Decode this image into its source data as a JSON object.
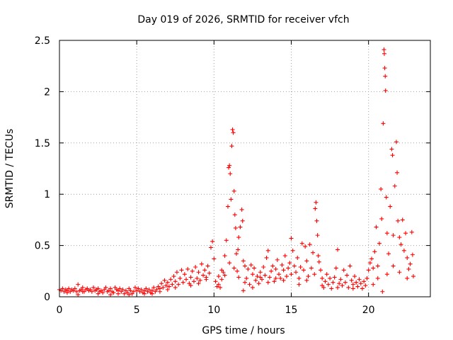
{
  "chart_data": {
    "type": "scatter",
    "title": "Day 019 of 2026, SRMTID for receiver vfch",
    "xlabel": "GPS time / hours",
    "ylabel": "SRMTID / TECUs",
    "xlim": [
      0,
      24
    ],
    "ylim": [
      0,
      2.5
    ],
    "xticks": [
      0,
      5,
      10,
      15,
      20
    ],
    "xtick_labels": [
      "0",
      "5",
      "10",
      "15",
      "20"
    ],
    "yticks": [
      0,
      0.5,
      1,
      1.5,
      2,
      2.5
    ],
    "ytick_labels": [
      "0",
      "0.5",
      "1",
      "1.5",
      "2",
      "2.5"
    ],
    "grid": true,
    "marker": "+",
    "series": [
      {
        "name": "SRMTID",
        "color": "#ff0000",
        "points": [
          [
            0.0,
            0.07
          ],
          [
            0.1,
            0.06
          ],
          [
            0.2,
            0.08
          ],
          [
            0.3,
            0.05
          ],
          [
            0.4,
            0.07
          ],
          [
            0.5,
            0.06
          ],
          [
            0.6,
            0.08
          ],
          [
            0.7,
            0.05
          ],
          [
            0.8,
            0.07
          ],
          [
            0.9,
            0.06
          ],
          [
            1.0,
            0.08
          ],
          [
            1.1,
            0.05
          ],
          [
            1.2,
            0.12
          ],
          [
            1.3,
            0.06
          ],
          [
            1.4,
            0.07
          ],
          [
            1.5,
            0.09
          ],
          [
            1.6,
            0.05
          ],
          [
            1.7,
            0.07
          ],
          [
            1.8,
            0.08
          ],
          [
            1.9,
            0.06
          ],
          [
            2.0,
            0.07
          ],
          [
            2.1,
            0.05
          ],
          [
            2.2,
            0.09
          ],
          [
            2.3,
            0.06
          ],
          [
            2.4,
            0.07
          ],
          [
            2.5,
            0.08
          ],
          [
            2.6,
            0.05
          ],
          [
            2.7,
            0.06
          ],
          [
            2.8,
            0.04
          ],
          [
            2.9,
            0.07
          ],
          [
            3.0,
            0.09
          ],
          [
            3.1,
            0.05
          ],
          [
            3.2,
            0.06
          ],
          [
            3.3,
            0.08
          ],
          [
            3.4,
            0.05
          ],
          [
            3.5,
            0.04
          ],
          [
            3.6,
            0.09
          ],
          [
            3.7,
            0.07
          ],
          [
            3.8,
            0.06
          ],
          [
            3.9,
            0.08
          ],
          [
            4.0,
            0.05
          ],
          [
            4.1,
            0.07
          ],
          [
            4.2,
            0.03
          ],
          [
            4.3,
            0.06
          ],
          [
            4.4,
            0.04
          ],
          [
            4.5,
            0.08
          ],
          [
            4.6,
            0.06
          ],
          [
            4.7,
            0.03
          ],
          [
            4.8,
            0.05
          ],
          [
            4.9,
            0.09
          ],
          [
            5.0,
            0.06
          ],
          [
            5.1,
            0.08
          ],
          [
            5.2,
            0.05
          ],
          [
            5.3,
            0.07
          ],
          [
            5.4,
            0.04
          ],
          [
            5.5,
            0.06
          ],
          [
            5.6,
            0.08
          ],
          [
            5.7,
            0.05
          ],
          [
            5.8,
            0.07
          ],
          [
            5.9,
            0.04
          ],
          [
            6.0,
            0.06
          ],
          [
            6.1,
            0.09
          ],
          [
            6.2,
            0.05
          ],
          [
            6.3,
            0.07
          ],
          [
            6.4,
            0.1
          ],
          [
            6.5,
            0.08
          ],
          [
            6.6,
            0.13
          ],
          [
            6.7,
            0.09
          ],
          [
            6.8,
            0.16
          ],
          [
            6.9,
            0.11
          ],
          [
            7.0,
            0.14
          ],
          [
            7.1,
            0.1
          ],
          [
            7.2,
            0.17
          ],
          [
            7.3,
            0.12
          ],
          [
            7.4,
            0.2
          ],
          [
            7.5,
            0.15
          ],
          [
            7.6,
            0.24
          ],
          [
            7.7,
            0.12
          ],
          [
            7.8,
            0.18
          ],
          [
            7.9,
            0.26
          ],
          [
            8.0,
            0.14
          ],
          [
            8.1,
            0.22
          ],
          [
            8.2,
            0.17
          ],
          [
            8.3,
            0.27
          ],
          [
            8.4,
            0.13
          ],
          [
            8.5,
            0.19
          ],
          [
            8.6,
            0.25
          ],
          [
            8.7,
            0.15
          ],
          [
            8.8,
            0.29
          ],
          [
            8.9,
            0.18
          ],
          [
            9.0,
            0.24
          ],
          [
            9.1,
            0.16
          ],
          [
            9.2,
            0.32
          ],
          [
            9.3,
            0.21
          ],
          [
            9.4,
            0.26
          ],
          [
            9.5,
            0.19
          ],
          [
            9.6,
            0.3
          ],
          [
            9.7,
            0.23
          ],
          [
            9.8,
            0.48
          ],
          [
            9.9,
            0.54
          ],
          [
            10.0,
            0.37
          ],
          [
            10.1,
            0.15
          ],
          [
            10.2,
            0.1
          ],
          [
            10.3,
            0.2
          ],
          [
            10.4,
            0.09
          ],
          [
            10.5,
            0.17
          ],
          [
            10.6,
            0.24
          ],
          [
            10.7,
            0.4
          ],
          [
            10.8,
            0.55
          ],
          [
            10.9,
            0.88
          ],
          [
            10.95,
            1.26
          ],
          [
            11.0,
            1.28
          ],
          [
            11.05,
            1.2
          ],
          [
            11.1,
            0.95
          ],
          [
            11.15,
            1.47
          ],
          [
            11.2,
            1.63
          ],
          [
            11.25,
            1.6
          ],
          [
            11.3,
            1.03
          ],
          [
            11.35,
            0.8
          ],
          [
            11.4,
            0.67
          ],
          [
            11.45,
            0.42
          ],
          [
            11.5,
            0.25
          ],
          [
            11.55,
            0.46
          ],
          [
            11.6,
            0.58
          ],
          [
            11.7,
            0.68
          ],
          [
            11.8,
            0.85
          ],
          [
            11.85,
            0.74
          ],
          [
            11.9,
            0.35
          ],
          [
            12.0,
            0.3
          ],
          [
            12.1,
            0.18
          ],
          [
            12.2,
            0.27
          ],
          [
            12.3,
            0.12
          ],
          [
            12.4,
            0.31
          ],
          [
            12.5,
            0.22
          ],
          [
            12.6,
            0.28
          ],
          [
            12.7,
            0.16
          ],
          [
            12.8,
            0.2
          ],
          [
            12.9,
            0.13
          ],
          [
            13.0,
            0.24
          ],
          [
            13.1,
            0.17
          ],
          [
            13.2,
            0.29
          ],
          [
            13.3,
            0.21
          ],
          [
            13.4,
            0.38
          ],
          [
            13.5,
            0.45
          ],
          [
            13.6,
            0.19
          ],
          [
            13.7,
            0.25
          ],
          [
            13.8,
            0.3
          ],
          [
            13.9,
            0.15
          ],
          [
            14.0,
            0.27
          ],
          [
            14.1,
            0.36
          ],
          [
            14.2,
            0.22
          ],
          [
            14.3,
            0.18
          ],
          [
            14.4,
            0.31
          ],
          [
            14.5,
            0.26
          ],
          [
            14.6,
            0.4
          ],
          [
            14.7,
            0.2
          ],
          [
            14.8,
            0.28
          ],
          [
            14.9,
            0.33
          ],
          [
            15.0,
            0.57
          ],
          [
            15.1,
            0.45
          ],
          [
            15.2,
            0.3
          ],
          [
            15.3,
            0.24
          ],
          [
            15.4,
            0.38
          ],
          [
            15.5,
            0.18
          ],
          [
            15.6,
            0.29
          ],
          [
            15.7,
            0.52
          ],
          [
            15.8,
            0.26
          ],
          [
            15.9,
            0.49
          ],
          [
            16.0,
            0.35
          ],
          [
            16.1,
            0.2
          ],
          [
            16.2,
            0.51
          ],
          [
            16.3,
            0.28
          ],
          [
            16.4,
            0.43
          ],
          [
            16.5,
            0.22
          ],
          [
            16.55,
            0.86
          ],
          [
            16.6,
            0.92
          ],
          [
            16.65,
            0.74
          ],
          [
            16.7,
            0.6
          ],
          [
            16.75,
            0.4
          ],
          [
            16.8,
            0.34
          ],
          [
            16.9,
            0.26
          ],
          [
            17.0,
            0.18
          ],
          [
            17.1,
            0.09
          ],
          [
            17.2,
            0.15
          ],
          [
            17.3,
            0.22
          ],
          [
            17.4,
            0.12
          ],
          [
            17.5,
            0.18
          ],
          [
            17.6,
            0.08
          ],
          [
            17.7,
            0.14
          ],
          [
            17.8,
            0.19
          ],
          [
            17.9,
            0.28
          ],
          [
            18.0,
            0.46
          ],
          [
            18.1,
            0.13
          ],
          [
            18.2,
            0.17
          ],
          [
            18.3,
            0.11
          ],
          [
            18.4,
            0.26
          ],
          [
            18.5,
            0.14
          ],
          [
            18.6,
            0.21
          ],
          [
            18.7,
            0.09
          ],
          [
            18.8,
            0.3
          ],
          [
            18.9,
            0.16
          ],
          [
            19.0,
            0.12
          ],
          [
            19.1,
            0.2
          ],
          [
            19.2,
            0.14
          ],
          [
            19.3,
            0.1
          ],
          [
            19.4,
            0.17
          ],
          [
            19.5,
            0.13
          ],
          [
            19.6,
            0.08
          ],
          [
            19.7,
            0.15
          ],
          [
            19.8,
            0.11
          ],
          [
            19.9,
            0.18
          ],
          [
            20.0,
            0.26
          ],
          [
            20.1,
            0.33
          ],
          [
            20.2,
            0.37
          ],
          [
            20.3,
            0.28
          ],
          [
            20.4,
            0.44
          ],
          [
            20.5,
            0.68
          ],
          [
            20.6,
            0.3
          ],
          [
            20.7,
            0.52
          ],
          [
            20.8,
            1.05
          ],
          [
            20.85,
            0.76
          ],
          [
            20.9,
            0.05
          ],
          [
            20.95,
            1.69
          ],
          [
            21.0,
            2.41
          ],
          [
            21.02,
            2.37
          ],
          [
            21.05,
            2.23
          ],
          [
            21.08,
            2.15
          ],
          [
            21.1,
            2.01
          ],
          [
            21.15,
            0.97
          ],
          [
            21.2,
            0.62
          ],
          [
            21.3,
            0.42
          ],
          [
            21.4,
            0.88
          ],
          [
            21.5,
            1.44
          ],
          [
            21.55,
            1.38
          ],
          [
            21.6,
            0.6
          ],
          [
            21.7,
            1.08
          ],
          [
            21.8,
            1.51
          ],
          [
            21.85,
            1.21
          ],
          [
            21.9,
            0.74
          ],
          [
            22.0,
            0.58
          ],
          [
            22.1,
            0.51
          ],
          [
            22.2,
            0.75
          ],
          [
            22.3,
            0.45
          ],
          [
            22.4,
            0.62
          ],
          [
            22.5,
            0.38
          ],
          [
            22.6,
            0.27
          ],
          [
            22.7,
            0.32
          ],
          [
            22.8,
            0.63
          ],
          [
            22.85,
            0.41
          ],
          [
            22.9,
            0.2
          ],
          [
            10.3,
            0.12
          ],
          [
            10.5,
            0.26
          ],
          [
            10.7,
            0.21
          ],
          [
            11.0,
            0.33
          ],
          [
            11.3,
            0.28
          ],
          [
            11.6,
            0.19
          ],
          [
            12.0,
            0.14
          ],
          [
            13.0,
            0.19
          ],
          [
            14.0,
            0.18
          ],
          [
            15.0,
            0.22
          ],
          [
            16.0,
            0.16
          ],
          [
            17.0,
            0.11
          ],
          [
            18.0,
            0.09
          ],
          [
            19.0,
            0.08
          ],
          [
            20.3,
            0.12
          ],
          [
            20.6,
            0.18
          ],
          [
            21.2,
            0.22
          ],
          [
            21.6,
            0.3
          ],
          [
            22.0,
            0.24
          ],
          [
            22.5,
            0.18
          ],
          [
            8.5,
            0.11
          ],
          [
            9.0,
            0.13
          ],
          [
            9.5,
            0.17
          ],
          [
            7.5,
            0.09
          ],
          [
            7.0,
            0.07
          ],
          [
            6.5,
            0.05
          ],
          [
            12.5,
            0.09
          ],
          [
            13.5,
            0.14
          ],
          [
            14.5,
            0.16
          ],
          [
            15.5,
            0.12
          ],
          [
            0.5,
            0.04
          ],
          [
            1.5,
            0.05
          ],
          [
            2.5,
            0.03
          ],
          [
            3.3,
            0.02
          ],
          [
            4.5,
            0.02
          ],
          [
            5.5,
            0.03
          ],
          [
            6.0,
            0.03
          ],
          [
            1.2,
            0.02
          ],
          [
            3.8,
            0.03
          ],
          [
            11.9,
            0.06
          ]
        ]
      }
    ]
  }
}
